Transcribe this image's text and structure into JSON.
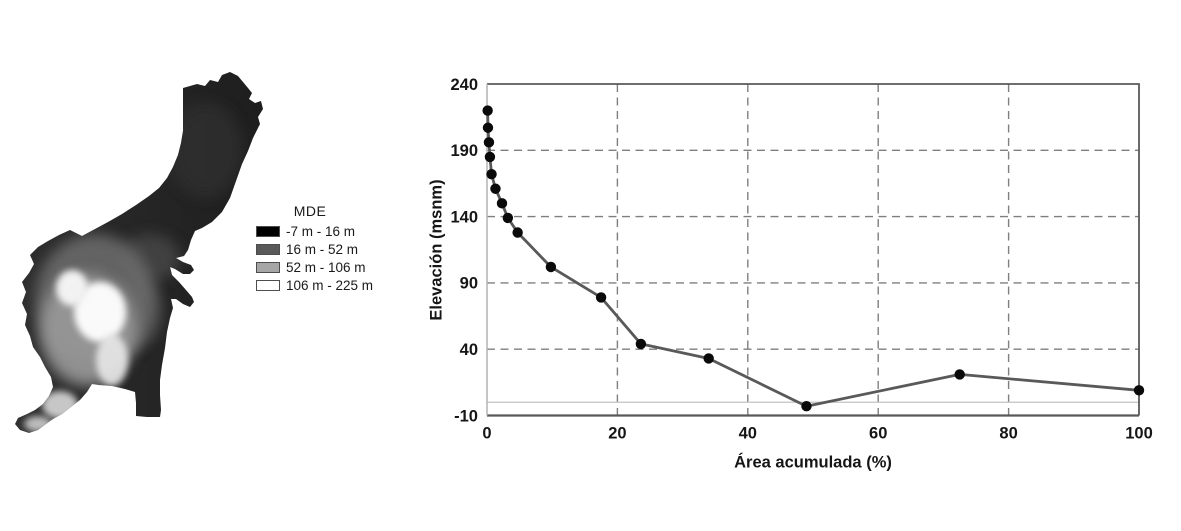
{
  "figure": {
    "background": "#ffffff"
  },
  "map_legend": {
    "title": "MDE",
    "items": [
      {
        "label": "-7 m - 16 m",
        "color": "#000000"
      },
      {
        "label": "16 m - 52 m",
        "color": "#595959"
      },
      {
        "label": "52 m - 106 m",
        "color": "#a6a6a6"
      },
      {
        "label": "106 m - 225 m",
        "color": "#ffffff"
      }
    ]
  },
  "chart_data": {
    "type": "line",
    "x": [
      0.1,
      0.15,
      0.3,
      0.45,
      0.7,
      1.3,
      2.3,
      3.2,
      4.7,
      9.8,
      17.5,
      23.6,
      34,
      49,
      72.5,
      100
    ],
    "y": [
      220,
      207,
      196,
      185,
      172,
      161,
      150,
      139,
      128,
      102,
      79,
      44,
      33,
      -3,
      21,
      9
    ],
    "xlabel": "Área acumulada (%)",
    "ylabel": "Elevación (msnm)",
    "xlim": [
      0,
      100
    ],
    "ylim": [
      -10,
      240
    ],
    "x_ticks": [
      0,
      20,
      40,
      60,
      80,
      100
    ],
    "y_ticks": [
      240,
      190,
      140,
      90,
      40,
      -10
    ],
    "grid": "dashed",
    "legend": "none",
    "reference_line_y": 0,
    "marker": "filled-circle",
    "colors": {
      "line": "#595959",
      "marker": "#0a0a0a",
      "grid": "#7f7f7f",
      "frame": "#595959",
      "left_axis": "#b3b3b3",
      "ref_line": "#c3c3c3"
    }
  }
}
